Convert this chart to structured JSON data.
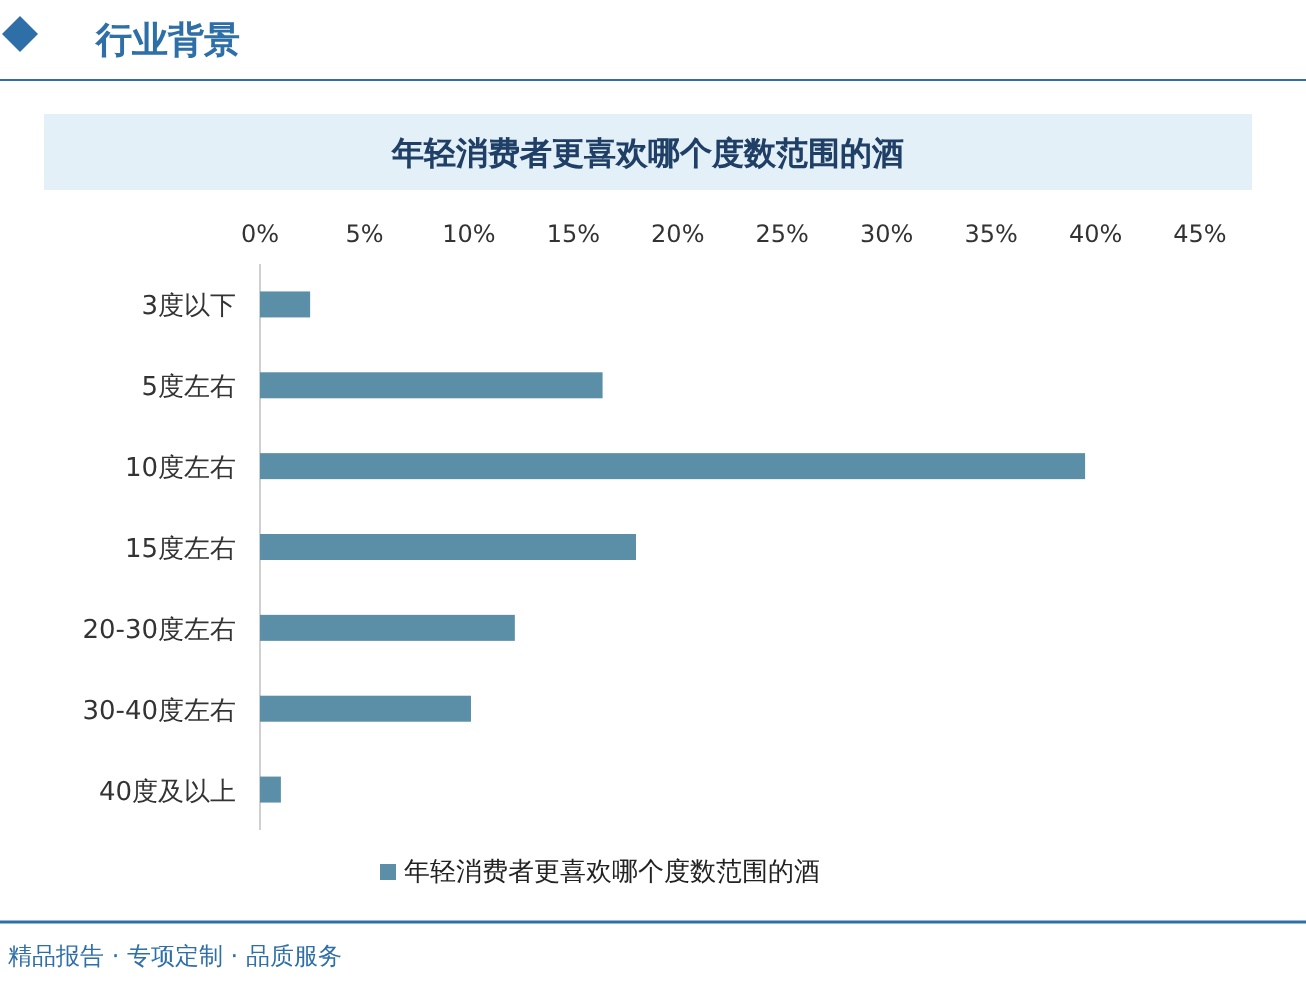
{
  "chart_data": {
    "type": "bar",
    "orientation": "horizontal",
    "title": "年轻消费者更喜欢哪个度数范围的酒",
    "categories": [
      "3度以下",
      "5度左右",
      "10度左右",
      "15度左右",
      "20-30度左右",
      "30-40度左右",
      "40度及以上"
    ],
    "series": [
      {
        "name": "年轻消费者更喜欢哪个度数范围的酒",
        "color": "#5b8fa8",
        "values": [
          2.4,
          16.4,
          39.5,
          18.0,
          12.2,
          10.1,
          1.0
        ]
      }
    ],
    "xlim": [
      0,
      45
    ],
    "xticks": [
      {
        "value": 0,
        "label": "0%"
      },
      {
        "value": 5,
        "label": "5%"
      },
      {
        "value": 10,
        "label": "10%"
      },
      {
        "value": 15,
        "label": "15%"
      },
      {
        "value": 20,
        "label": "20%"
      },
      {
        "value": 25,
        "label": "25%"
      },
      {
        "value": 30,
        "label": "30%"
      },
      {
        "value": 35,
        "label": "35%"
      },
      {
        "value": 40,
        "label": "40%"
      },
      {
        "value": 45,
        "label": "45%"
      }
    ],
    "grid": false,
    "legend": "bottom",
    "annotations": [
      "行业背景",
      "精品报告 · 专项定制 · 品质服务"
    ]
  }
}
